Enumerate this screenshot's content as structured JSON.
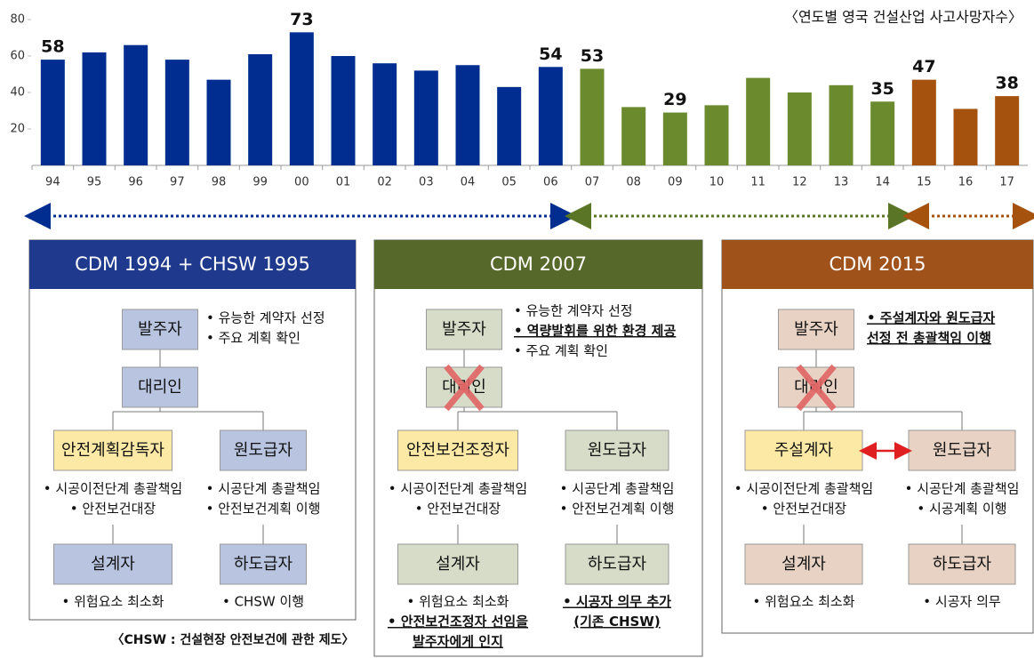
{
  "chart_data": {
    "type": "bar",
    "title": "〈연도별 영국 건설산업 사고사망자수〉",
    "categories": [
      "94",
      "95",
      "96",
      "97",
      "98",
      "99",
      "00",
      "01",
      "02",
      "03",
      "04",
      "05",
      "06",
      "07",
      "08",
      "09",
      "10",
      "11",
      "12",
      "13",
      "14",
      "15",
      "16",
      "17"
    ],
    "values": [
      58,
      62,
      66,
      58,
      47,
      61,
      73,
      60,
      56,
      52,
      55,
      43,
      54,
      53,
      32,
      29,
      33,
      48,
      40,
      44,
      35,
      47,
      31,
      38
    ],
    "value_labels": [
      "58",
      null,
      null,
      null,
      null,
      null,
      "73",
      null,
      null,
      null,
      null,
      null,
      "54",
      "53",
      null,
      "29",
      null,
      null,
      null,
      null,
      "35",
      "47",
      null,
      "38"
    ],
    "colors": [
      "#002d8f",
      "#002d8f",
      "#002d8f",
      "#002d8f",
      "#002d8f",
      "#002d8f",
      "#002d8f",
      "#002d8f",
      "#002d8f",
      "#002d8f",
      "#002d8f",
      "#002d8f",
      "#002d8f",
      "#6b8a2e",
      "#6b8a2e",
      "#6b8a2e",
      "#6b8a2e",
      "#6b8a2e",
      "#6b8a2e",
      "#6b8a2e",
      "#6b8a2e",
      "#a5520f",
      "#a5520f",
      "#a5520f"
    ],
    "ylim": [
      0,
      80
    ],
    "yticks": [
      20,
      40,
      60,
      80
    ],
    "grid": false
  },
  "panels": [
    {
      "title": "CDM 1994 + CHSW 1995",
      "client": "발주자",
      "client_notes": [
        "• 유능한 계약자 선정",
        "• 주요 계획 확인"
      ],
      "agent": "대리인",
      "left": "안전계획감독자",
      "left_notes": [
        "• 시공이전단계 총괄책임",
        "• 안전보건대장"
      ],
      "right": "원도급자",
      "right_notes": [
        "• 시공단계 총괄책임",
        "• 안전보건계획 이행"
      ],
      "left_bottom": "설계자",
      "left_bottom_notes": [
        "• 위험요소 최소화"
      ],
      "right_bottom": "하도급자",
      "right_bottom_notes": [
        "• CHSW 이행"
      ]
    },
    {
      "title": "CDM 2007",
      "client": "발주자",
      "client_notes": [
        "• 유능한 계약자 선정",
        "• 역량발휘를 위한 환경 제공",
        "• 주요 계획 확인"
      ],
      "agent": "대리인",
      "left": "안전보건조정자",
      "left_notes": [
        "• 시공이전단계 총괄책임",
        "• 안전보건대장"
      ],
      "right": "원도급자",
      "right_notes": [
        "• 시공단계 총괄책임",
        "• 안전보건계획 이행"
      ],
      "left_bottom": "설계자",
      "left_bottom_notes": [
        "• 위험요소 최소화",
        "• 안전보건조정자 선임을",
        "발주자에게 인지"
      ],
      "right_bottom": "하도급자",
      "right_bottom_notes": [
        "• 시공자 의무 추가",
        "(기존 CHSW)"
      ]
    },
    {
      "title": "CDM 2015",
      "client": "발주자",
      "client_notes": [
        "• 주설계자와 원도급자",
        "선정 전 총괄책임 이행"
      ],
      "agent": "대리인",
      "left": "주설계자",
      "left_notes": [
        "• 시공이전단계 총괄책임",
        "• 안전보건대장"
      ],
      "right": "원도급자",
      "right_notes": [
        "• 시공단계 총괄책임",
        "• 시공계획 이행"
      ],
      "left_bottom": "설계자",
      "left_bottom_notes": [
        "• 위험요소 최소화"
      ],
      "right_bottom": "하도급자",
      "right_bottom_notes": [
        "• 시공자 의무"
      ]
    }
  ],
  "footnote": "〈CHSW : 건설현장 안전보건에 관한 제도〉"
}
